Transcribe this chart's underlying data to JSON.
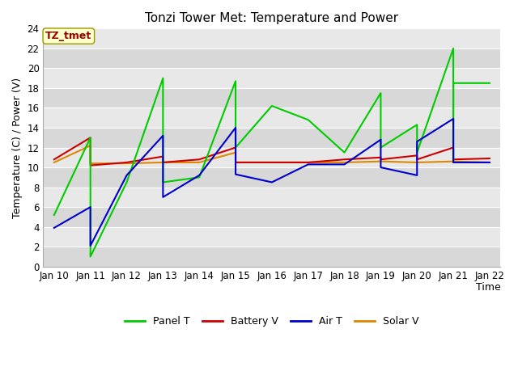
{
  "title": "Tonzi Tower Met: Temperature and Power",
  "xlabel": "Time",
  "ylabel": "Temperature (C) / Power (V)",
  "watermark": "TZ_tmet",
  "fig_facecolor": "#ffffff",
  "plot_bg_color": "#d8d8d8",
  "alt_bg_color": "#e8e8e8",
  "ylim": [
    0,
    24
  ],
  "yticks": [
    0,
    2,
    4,
    6,
    8,
    10,
    12,
    14,
    16,
    18,
    20,
    22,
    24
  ],
  "x_labels": [
    "Jan 10",
    "Jan 11",
    "Jan 12",
    "Jan 13",
    "Jan 14",
    "Jan 15",
    "Jan 16",
    "Jan 17",
    "Jan 18",
    "Jan 19",
    "Jan 20",
    "Jan 21",
    "Jan 22"
  ],
  "x_values": [
    0,
    1,
    2,
    3,
    4,
    5,
    6,
    7,
    8,
    9,
    10,
    11,
    12
  ],
  "series": {
    "Panel T": {
      "color": "#00cc00",
      "lw": 1.5,
      "x": [
        0,
        1,
        1,
        2,
        3,
        3,
        3,
        4,
        5,
        5,
        5,
        6,
        7,
        8,
        9,
        9,
        10,
        10,
        11,
        11,
        11,
        12
      ],
      "y": [
        5.2,
        13.0,
        1.0,
        8.5,
        19.0,
        17.2,
        8.5,
        9.0,
        18.7,
        15.5,
        12.0,
        16.2,
        14.8,
        11.5,
        17.5,
        12.0,
        14.3,
        11.5,
        22.0,
        10.5,
        18.5,
        18.5
      ]
    },
    "Battery V": {
      "color": "#cc0000",
      "lw": 1.5,
      "x": [
        0,
        1,
        1,
        2,
        3,
        3,
        4,
        5,
        5,
        5,
        6,
        7,
        8,
        9,
        9,
        10,
        10,
        11,
        11,
        12
      ],
      "y": [
        10.8,
        13.0,
        10.2,
        10.5,
        11.1,
        10.5,
        10.8,
        12.0,
        11.9,
        10.5,
        10.5,
        10.5,
        10.8,
        11.0,
        10.8,
        11.2,
        10.8,
        12.0,
        10.8,
        10.9
      ]
    },
    "Air T": {
      "color": "#0000cc",
      "lw": 1.5,
      "x": [
        0,
        1,
        1,
        2,
        3,
        3,
        4,
        5,
        5,
        5,
        6,
        7,
        8,
        9,
        9,
        10,
        10,
        11,
        11,
        12
      ],
      "y": [
        3.9,
        6.0,
        2.1,
        9.2,
        13.2,
        7.0,
        9.2,
        14.0,
        12.7,
        9.3,
        8.5,
        10.3,
        10.3,
        12.8,
        10.0,
        9.2,
        12.6,
        14.9,
        10.5,
        10.5
      ]
    },
    "Solar V": {
      "color": "#dd8800",
      "lw": 1.5,
      "x": [
        0,
        1,
        1,
        2,
        3,
        4,
        5,
        5,
        5,
        6,
        7,
        8,
        9,
        10,
        11,
        12
      ],
      "y": [
        10.5,
        12.2,
        10.4,
        10.4,
        10.5,
        10.5,
        11.5,
        11.4,
        10.5,
        10.5,
        10.5,
        10.5,
        10.6,
        10.5,
        10.6,
        10.5
      ]
    }
  },
  "legend_order": [
    "Panel T",
    "Battery V",
    "Air T",
    "Solar V"
  ],
  "grid_color": "#ffffff",
  "title_fontsize": 11,
  "axis_fontsize": 9,
  "tick_fontsize": 8.5,
  "watermark_fontsize": 9,
  "legend_fontsize": 9
}
